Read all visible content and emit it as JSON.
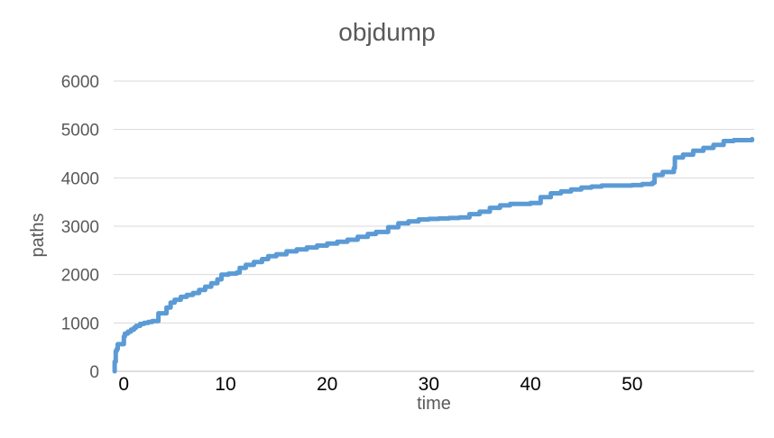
{
  "chart_data": {
    "type": "line",
    "title": "objdump",
    "xlabel": "time",
    "ylabel": "paths",
    "xlim": [
      -1,
      62
    ],
    "ylim": [
      0,
      6000
    ],
    "x_ticks": [
      0,
      10,
      20,
      30,
      40,
      50
    ],
    "y_ticks": [
      0,
      1000,
      2000,
      3000,
      4000,
      5000,
      6000
    ],
    "grid": "horizontal",
    "legend": "none",
    "series": [
      {
        "color": "#5b9bd5",
        "x": [
          -0.9,
          -0.9,
          -0.8,
          -0.7,
          -0.6,
          -0.4,
          -0.3,
          0.0,
          0.1,
          0.4,
          0.7,
          1.0,
          1.2,
          1.6,
          2.0,
          2.4,
          2.8,
          3.4,
          3.4,
          4.2,
          4.6,
          5.0,
          5.6,
          6.2,
          6.8,
          7.4,
          8.0,
          8.6,
          9.2,
          9.6,
          9.6,
          10.3,
          11.1,
          11.4,
          12.0,
          12.8,
          13.6,
          14.2,
          15.0,
          16.0,
          17.0,
          18.0,
          19.0,
          20.0,
          21.0,
          22.0,
          23.0,
          24.0,
          24.8,
          26.0,
          27.0,
          28.0,
          29.0,
          30.0,
          31.0,
          32.0,
          33.0,
          34.0,
          35.0,
          36.0,
          37.0,
          38.0,
          38.9,
          40.0,
          41.0,
          42.0,
          43.0,
          44.0,
          45.0,
          46.0,
          47.0,
          48.0,
          49.0,
          50.0,
          51.0,
          52.0,
          52.2,
          53.0,
          54.1,
          54.2,
          55.0,
          56.0,
          57.0,
          58.0,
          59.0,
          60.0,
          60.8,
          61.8
        ],
        "values": [
          0,
          200,
          420,
          460,
          560,
          560,
          560,
          720,
          780,
          820,
          860,
          900,
          940,
          980,
          1000,
          1020,
          1040,
          1060,
          1200,
          1320,
          1420,
          1480,
          1540,
          1580,
          1620,
          1680,
          1750,
          1820,
          1900,
          1920,
          2000,
          2020,
          2040,
          2140,
          2200,
          2260,
          2320,
          2380,
          2420,
          2480,
          2520,
          2560,
          2600,
          2640,
          2680,
          2720,
          2780,
          2840,
          2880,
          2980,
          3060,
          3100,
          3140,
          3150,
          3160,
          3170,
          3180,
          3250,
          3300,
          3380,
          3430,
          3460,
          3460,
          3480,
          3600,
          3680,
          3720,
          3760,
          3800,
          3820,
          3840,
          3840,
          3840,
          3850,
          3870,
          3900,
          4060,
          4120,
          4200,
          4420,
          4480,
          4560,
          4620,
          4680,
          4760,
          4780,
          4780,
          4800
        ]
      }
    ]
  }
}
